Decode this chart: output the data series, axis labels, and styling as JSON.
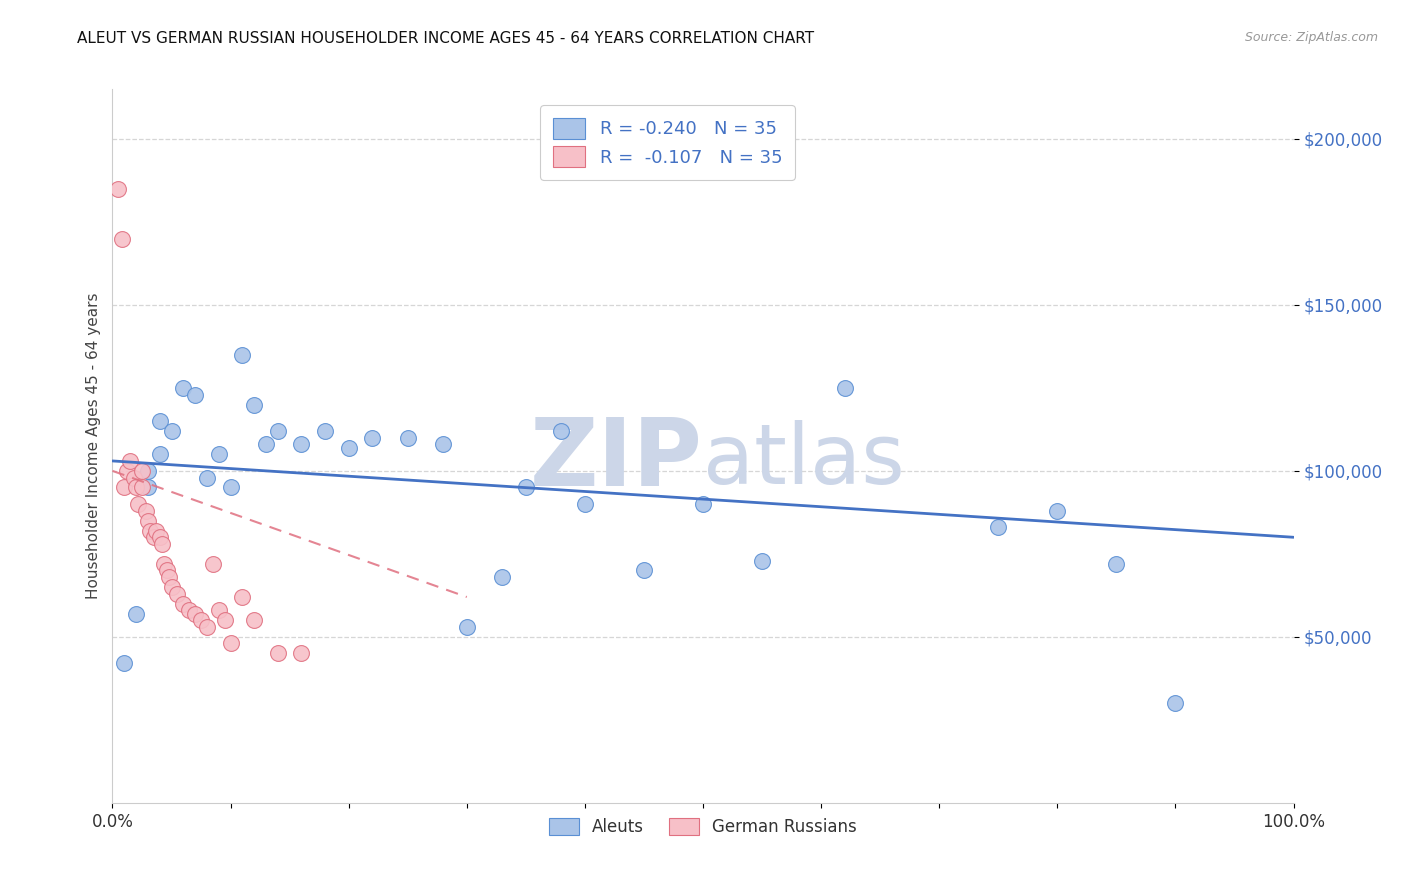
{
  "title": "ALEUT VS GERMAN RUSSIAN HOUSEHOLDER INCOME AGES 45 - 64 YEARS CORRELATION CHART",
  "source": "Source: ZipAtlas.com",
  "ylabel": "Householder Income Ages 45 - 64 years",
  "ytick_values": [
    50000,
    100000,
    150000,
    200000
  ],
  "ymin": 0,
  "ymax": 215000,
  "xmin": 0.0,
  "xmax": 1.0,
  "aleuts_x": [
    0.01,
    0.02,
    0.03,
    0.03,
    0.04,
    0.04,
    0.05,
    0.06,
    0.07,
    0.08,
    0.09,
    0.1,
    0.11,
    0.12,
    0.13,
    0.14,
    0.16,
    0.18,
    0.2,
    0.22,
    0.25,
    0.28,
    0.3,
    0.33,
    0.35,
    0.38,
    0.4,
    0.45,
    0.5,
    0.55,
    0.62,
    0.75,
    0.8,
    0.85,
    0.9
  ],
  "aleuts_y": [
    42000,
    57000,
    100000,
    95000,
    105000,
    115000,
    112000,
    125000,
    123000,
    98000,
    105000,
    95000,
    135000,
    120000,
    108000,
    112000,
    108000,
    112000,
    107000,
    110000,
    110000,
    108000,
    53000,
    68000,
    95000,
    112000,
    90000,
    70000,
    90000,
    73000,
    125000,
    83000,
    88000,
    72000,
    30000
  ],
  "german_russian_x": [
    0.005,
    0.008,
    0.01,
    0.012,
    0.015,
    0.018,
    0.02,
    0.022,
    0.025,
    0.025,
    0.028,
    0.03,
    0.032,
    0.035,
    0.037,
    0.04,
    0.042,
    0.044,
    0.046,
    0.048,
    0.05,
    0.055,
    0.06,
    0.065,
    0.07,
    0.075,
    0.08,
    0.085,
    0.09,
    0.095,
    0.1,
    0.11,
    0.12,
    0.14,
    0.16
  ],
  "german_russian_y": [
    185000,
    170000,
    95000,
    100000,
    103000,
    98000,
    95000,
    90000,
    100000,
    95000,
    88000,
    85000,
    82000,
    80000,
    82000,
    80000,
    78000,
    72000,
    70000,
    68000,
    65000,
    63000,
    60000,
    58000,
    57000,
    55000,
    53000,
    72000,
    58000,
    55000,
    48000,
    62000,
    55000,
    45000,
    45000
  ],
  "aleut_color": "#aac4e8",
  "aleut_edge_color": "#5a8fd4",
  "aleut_line_color": "#4472c4",
  "german_russian_color": "#f7c0c8",
  "german_russian_edge_color": "#e07080",
  "german_russian_line_color": "#e07080",
  "legend_aleut_R": "R = -0.240",
  "legend_aleut_N": "N = 35",
  "legend_german_R": "R =  -0.107",
  "legend_german_N": "N = 35",
  "background_color": "#ffffff",
  "grid_color": "#cccccc",
  "watermark_color": "#ccd6e8",
  "aleut_trendline_x": [
    0.0,
    1.0
  ],
  "aleut_trendline_y": [
    103000,
    80000
  ],
  "german_trendline_x": [
    0.0,
    0.3
  ],
  "german_trendline_y": [
    100000,
    62000
  ]
}
